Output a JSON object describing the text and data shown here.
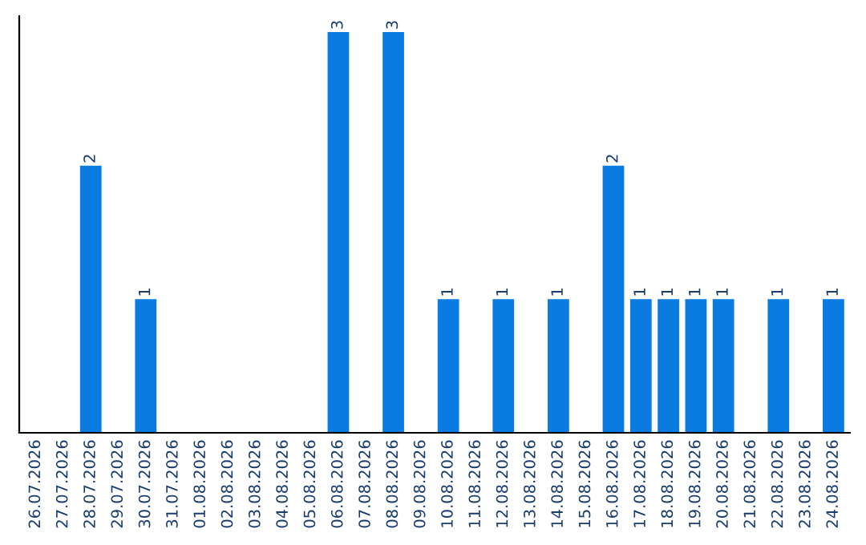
{
  "chart_data": {
    "type": "bar",
    "categories": [
      "26.07.2026",
      "27.07.2026",
      "28.07.2026",
      "29.07.2026",
      "30.07.2026",
      "31.07.2026",
      "01.08.2026",
      "02.08.2026",
      "03.08.2026",
      "04.08.2026",
      "05.08.2026",
      "06.08.2026",
      "07.08.2026",
      "08.08.2026",
      "09.08.2026",
      "10.08.2026",
      "11.08.2026",
      "12.08.2026",
      "13.08.2026",
      "14.08.2026",
      "15.08.2026",
      "16.08.2026",
      "17.08.2026",
      "18.08.2026",
      "19.08.2026",
      "20.08.2026",
      "21.08.2026",
      "22.08.2026",
      "23.08.2026",
      "24.08.2026"
    ],
    "values": [
      0,
      0,
      2,
      0,
      1,
      0,
      0,
      0,
      0,
      0,
      0,
      3,
      0,
      3,
      0,
      1,
      0,
      1,
      0,
      1,
      0,
      2,
      1,
      1,
      1,
      1,
      0,
      1,
      0,
      1
    ],
    "value_labels": [
      null,
      null,
      "2",
      null,
      "1",
      null,
      null,
      null,
      null,
      null,
      null,
      "3",
      null,
      "3",
      null,
      "1",
      null,
      "1",
      null,
      "1",
      null,
      "2",
      "1",
      "1",
      "1",
      "1",
      null,
      "1",
      null,
      "1"
    ],
    "color": "#0a7be0",
    "grid": false,
    "legend": false
  }
}
